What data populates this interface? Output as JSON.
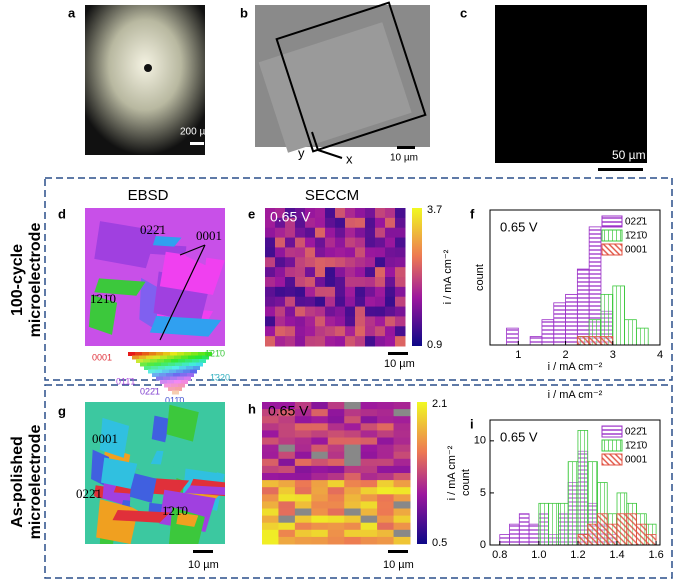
{
  "panels": {
    "a": {
      "label": "a",
      "scale": "200 µm"
    },
    "b": {
      "label": "b",
      "scale": "10 µm",
      "axis_x": "x",
      "axis_y": "y"
    },
    "c": {
      "label": "c",
      "scale": "50 µm"
    },
    "d": {
      "label": "d",
      "header": "EBSD",
      "grains": [
        "022̄1",
        "0001",
        "1̄21̄0"
      ]
    },
    "key": [
      "0001",
      "1̄21̄0",
      "011̄1",
      "1̄320",
      "022̄1",
      "011̄0"
    ],
    "e": {
      "label": "e",
      "header": "SECCM",
      "voltage": "0.65 V",
      "cbar_max": 3.7,
      "cbar_min": 0.9,
      "cbar_label": "i / mA cm⁻²",
      "scale": "10 µm"
    },
    "g": {
      "label": "g",
      "grains": [
        "0001",
        "022̄1",
        "1̄21̄0"
      ],
      "scale": "10 µm"
    },
    "h": {
      "label": "h",
      "voltage": "0.65 V",
      "cbar_max": 2.1,
      "cbar_min": 0.5,
      "cbar_label": "i / mA cm⁻²",
      "scale": "10 µm"
    }
  },
  "rows": [
    [
      "100-cycle",
      "microelectrode"
    ],
    [
      "As-polished",
      "microelectrode"
    ]
  ],
  "chart_data": [
    {
      "type": "histogram",
      "label": "f",
      "annotation": "0.65 V",
      "xlabel": "i / mA cm⁻²",
      "ylabel": "count",
      "bins": [
        0.75,
        1.0,
        1.25,
        1.5,
        1.75,
        2.0,
        2.25,
        2.5,
        2.75,
        3.0,
        3.25,
        3.5,
        3.75
      ],
      "series": [
        {
          "name": "022̄1",
          "color": "#9b30c8",
          "values": [
            2,
            0,
            1,
            3,
            5,
            6,
            9,
            14,
            4,
            0,
            0,
            0
          ]
        },
        {
          "name": "1̄21̄0",
          "color": "#3cc83c",
          "values": [
            0,
            0,
            0,
            0,
            0,
            0,
            1,
            3,
            6,
            7,
            3,
            2
          ]
        },
        {
          "name": "0001",
          "color": "#e05040",
          "values": [
            0,
            0,
            0,
            0,
            0,
            0,
            1,
            1,
            1,
            0,
            0,
            0
          ]
        }
      ],
      "xlim": [
        0.4,
        4.0
      ],
      "xticks": [
        1,
        2,
        3,
        4
      ],
      "ylim": [
        0,
        16
      ]
    },
    {
      "type": "histogram",
      "label": "i",
      "annotation": "0.65 V",
      "xlabel": "i / mA cm⁻²",
      "ylabel": "count",
      "bins": [
        0.8,
        0.85,
        0.9,
        0.95,
        1.0,
        1.05,
        1.1,
        1.15,
        1.2,
        1.25,
        1.3,
        1.35,
        1.4,
        1.45,
        1.5,
        1.55,
        1.6
      ],
      "series": [
        {
          "name": "022̄1",
          "color": "#9b30c8",
          "values": [
            1,
            2,
            3,
            2,
            3,
            1,
            3,
            6,
            9,
            4,
            2,
            1,
            0,
            0,
            0,
            0
          ]
        },
        {
          "name": "1̄21̄0",
          "color": "#3cc83c",
          "values": [
            0,
            0,
            0,
            0,
            4,
            4,
            4,
            8,
            11,
            8,
            6,
            3,
            5,
            4,
            3,
            2
          ]
        },
        {
          "name": "0001",
          "color": "#e05040",
          "values": [
            0,
            0,
            0,
            0,
            0,
            0,
            0,
            0,
            1,
            2,
            3,
            2,
            3,
            3,
            2,
            1
          ]
        }
      ],
      "xlim": [
        0.75,
        1.62
      ],
      "xticks": [
        0.8,
        {
          "value": 1.0,
          "label": "1.0"
        },
        1.2,
        1.4,
        1.6
      ],
      "ylim": [
        0,
        12
      ],
      "yticks": [
        0,
        5,
        10
      ]
    }
  ]
}
